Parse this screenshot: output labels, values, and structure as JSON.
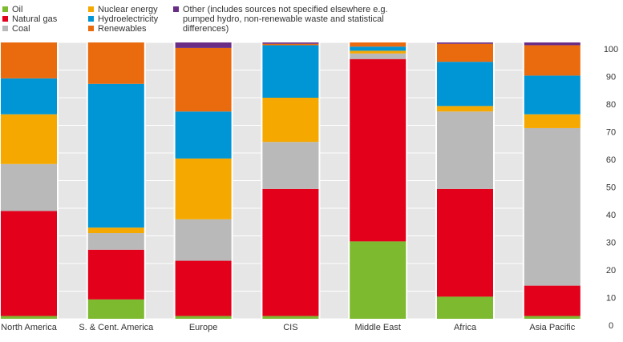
{
  "chart_data": {
    "type": "stacked_bar",
    "categories": [
      "North America",
      "S. & Cent. America",
      "Europe",
      "CIS",
      "Middle East",
      "Africa",
      "Asia Pacific"
    ],
    "series": [
      {
        "name": "Oil",
        "color": "#7dba2f",
        "values": [
          1,
          7,
          1,
          1,
          28,
          8,
          1
        ]
      },
      {
        "name": "Natural gas",
        "color": "#e3001b",
        "values": [
          38,
          18,
          20,
          46,
          66,
          39,
          11
        ]
      },
      {
        "name": "Coal",
        "color": "#b9b9b9",
        "values": [
          17,
          6,
          15,
          17,
          2,
          28,
          57
        ]
      },
      {
        "name": "Nuclear energy",
        "color": "#f5a800",
        "values": [
          18,
          2,
          22,
          16,
          1,
          2,
          5
        ]
      },
      {
        "name": "Hydroelectricity",
        "color": "#0096d6",
        "values": [
          13,
          52,
          17,
          19,
          1.5,
          16,
          14
        ]
      },
      {
        "name": "Renewables",
        "color": "#ea6a0e",
        "values": [
          13,
          15,
          23,
          0.5,
          1.5,
          6.5,
          11
        ]
      },
      {
        "name": "Other (includes sources not specified elsewhere e.g. pumped hydro, non-renewable waste and statistical differences)",
        "color": "#6a2d86",
        "values": [
          0,
          0,
          2,
          0.5,
          0,
          0.5,
          1
        ]
      }
    ],
    "ylim": [
      0,
      100
    ],
    "yticks": [
      0,
      10,
      20,
      30,
      40,
      50,
      60,
      70,
      80,
      90,
      100
    ],
    "grid": true
  }
}
